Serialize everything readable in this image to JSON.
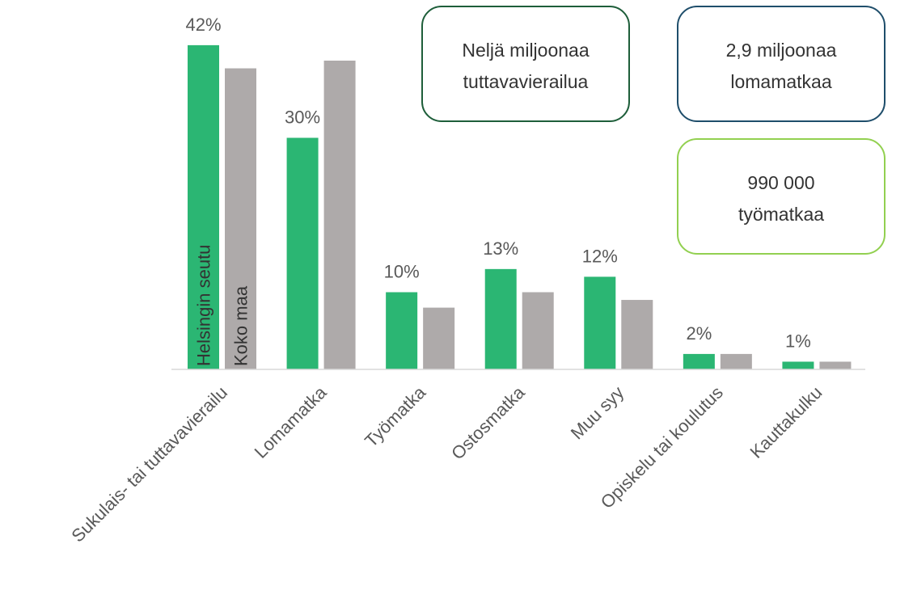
{
  "chart_data": {
    "type": "bar",
    "categories": [
      "Sukulais- tai tuttavavierailu",
      "Lomamatka",
      "Työmatka",
      "Ostosmatka",
      "Muu syy",
      "Opiskelu tai koulutus",
      "Kauttakulku"
    ],
    "series": [
      {
        "name": "Helsingin seutu",
        "color": "#2bb673",
        "values": [
          42,
          30,
          10,
          13,
          12,
          2,
          1
        ],
        "value_labels": [
          "42%",
          "30%",
          "10%",
          "13%",
          "12%",
          "2%",
          "1%"
        ]
      },
      {
        "name": "Koko maa",
        "color": "#aeaaaa",
        "values": [
          39,
          40,
          8,
          10,
          9,
          2,
          1
        ]
      }
    ],
    "ylim": [
      0,
      45
    ],
    "annotations": [
      {
        "lines": [
          "Neljä miljoonaa",
          "tuttavavierailua"
        ],
        "color": "#1e5e3a"
      },
      {
        "lines": [
          "2,9 miljoonaa",
          "lomamatkaa"
        ],
        "color": "#1f4e6b"
      },
      {
        "lines": [
          "990 000",
          "työmatkaa"
        ],
        "color": "#92d050"
      }
    ]
  }
}
